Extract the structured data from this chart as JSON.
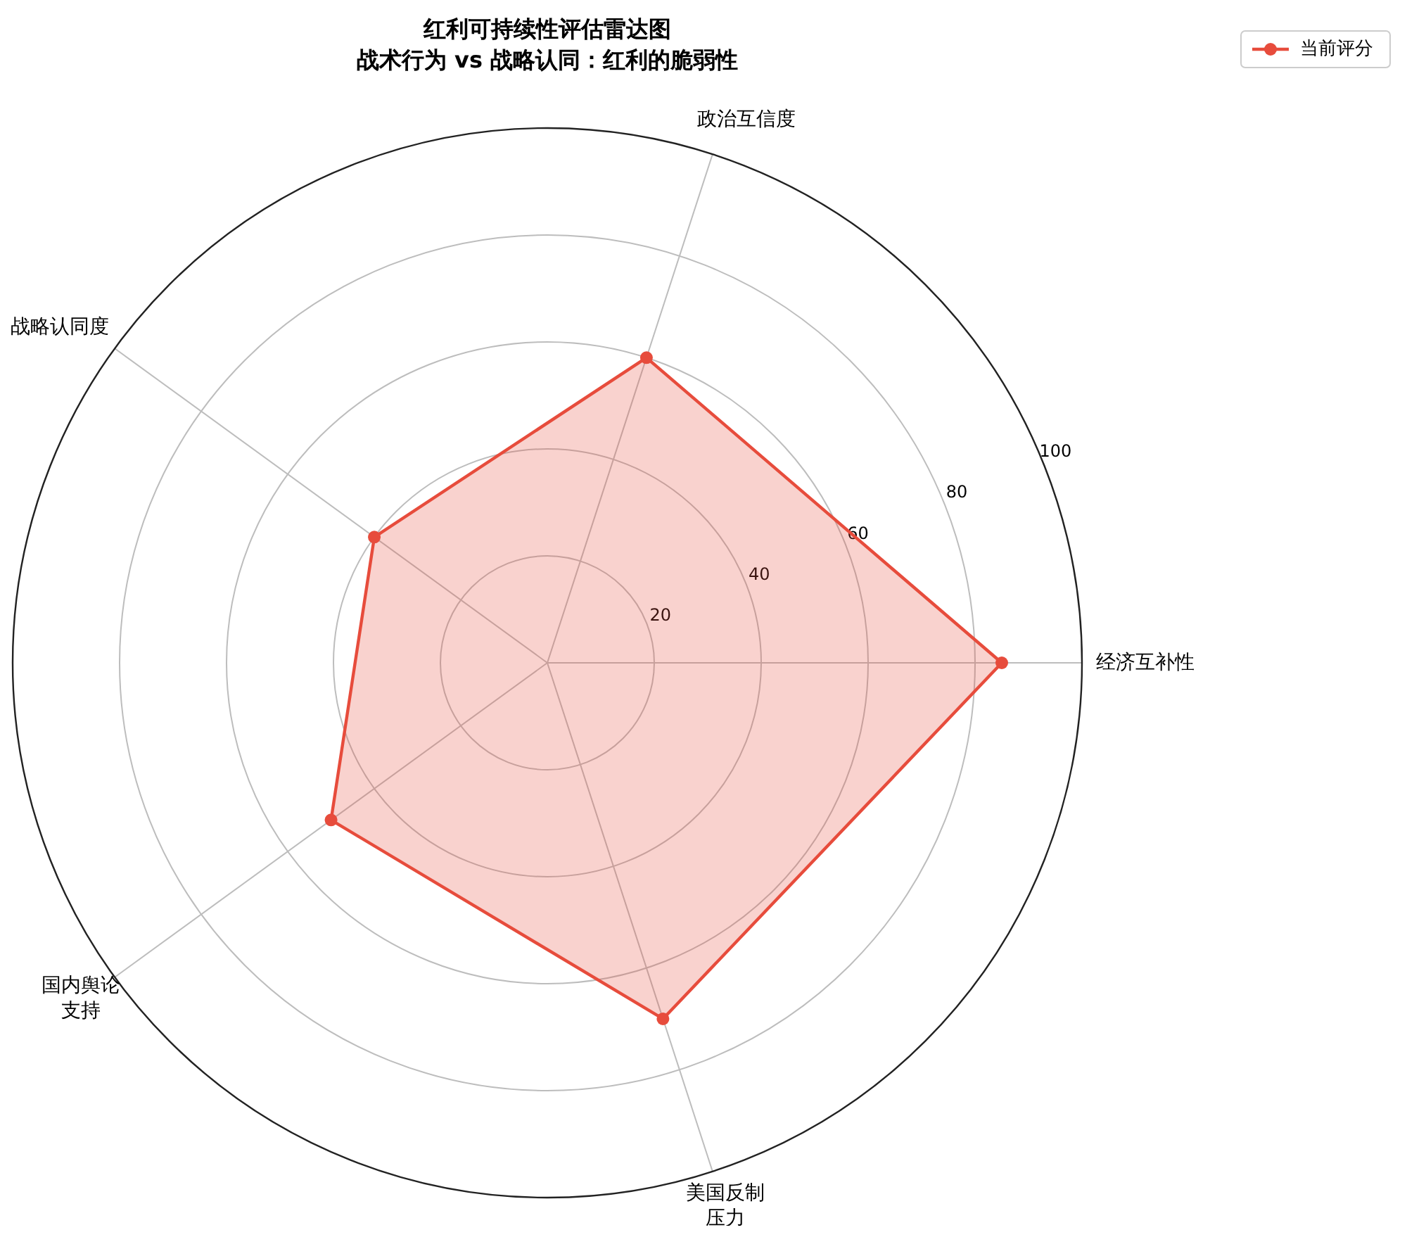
{
  "chart_data": {
    "type": "radar",
    "title": "红利可持续性评估雷达图",
    "subtitle": "战术行为 vs 战略认同：红利的脆弱性",
    "categories": [
      "政治互信度",
      "经济互补性",
      "美国反制压力",
      "国内舆论支持",
      "战略认同度"
    ],
    "series": [
      {
        "name": "当前评分",
        "color": "#e74c3c",
        "values": [
          60,
          85,
          70,
          50,
          40
        ]
      }
    ],
    "ylim": [
      0,
      100
    ],
    "yticks": [
      20,
      40,
      60,
      80,
      100
    ],
    "grid": true,
    "legend": "top right",
    "marker": "circle",
    "line_style": "solid"
  }
}
